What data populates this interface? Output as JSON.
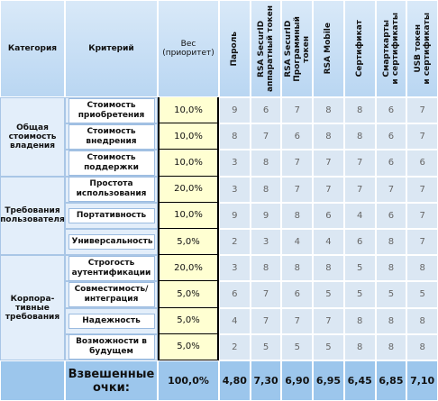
{
  "header": {
    "category": "Категория",
    "criterion": "Критерий",
    "weight": "Вес\n(приоритет)",
    "methods": [
      "Пароль",
      "RSA SecurID\nаппаратный токен",
      "RSA SecurID\nПрограммный\nтокен",
      "RSA Mobile",
      "Сертификат",
      "Смарткарты\nи сертификаты",
      "USB токен\nи сертификаты"
    ]
  },
  "groups": [
    {
      "category": "Общая\nстоимость\nвладения",
      "rows": [
        {
          "criterion": "Стоимость\nприобретения",
          "weight": "10,0%",
          "scores": [
            9,
            6,
            7,
            8,
            8,
            6,
            7
          ]
        },
        {
          "criterion": "Стоимость\nвнедрения",
          "weight": "10,0%",
          "scores": [
            8,
            7,
            6,
            8,
            8,
            6,
            7
          ]
        },
        {
          "criterion": "Стоимость\nподдержки",
          "weight": "10,0%",
          "scores": [
            3,
            8,
            7,
            7,
            7,
            6,
            6
          ]
        }
      ]
    },
    {
      "category": "Требования\nпользователя",
      "rows": [
        {
          "criterion": "Простота\nиспользования",
          "weight": "20,0%",
          "scores": [
            3,
            8,
            7,
            7,
            7,
            7,
            7
          ]
        },
        {
          "criterion": "Портативность",
          "weight": "10,0%",
          "scores": [
            9,
            9,
            8,
            6,
            4,
            6,
            7
          ]
        },
        {
          "criterion": "Универсальность",
          "weight": "5,0%",
          "scores": [
            2,
            3,
            4,
            4,
            6,
            8,
            7
          ]
        }
      ]
    },
    {
      "category": "Корпора-\nтивные\nтребования",
      "rows": [
        {
          "criterion": "Строгость\nаутентификации",
          "weight": "20,0%",
          "scores": [
            3,
            8,
            8,
            8,
            5,
            8,
            8
          ]
        },
        {
          "criterion": "Совместимость/\nинтеграция",
          "weight": "5,0%",
          "scores": [
            6,
            7,
            6,
            5,
            5,
            5,
            5
          ]
        },
        {
          "criterion": "Надежность",
          "weight": "5,0%",
          "scores": [
            4,
            7,
            7,
            7,
            8,
            8,
            8
          ]
        },
        {
          "criterion": "Возможности в\nбудущем",
          "weight": "5,0%",
          "scores": [
            2,
            5,
            5,
            5,
            8,
            8,
            8
          ]
        }
      ]
    }
  ],
  "footer": {
    "label": "Взвешенные\nочки:",
    "weight": "100,0%",
    "scores": [
      "4,80",
      "7,30",
      "6,90",
      "6,95",
      "6,45",
      "6,85",
      "7,10"
    ]
  }
}
